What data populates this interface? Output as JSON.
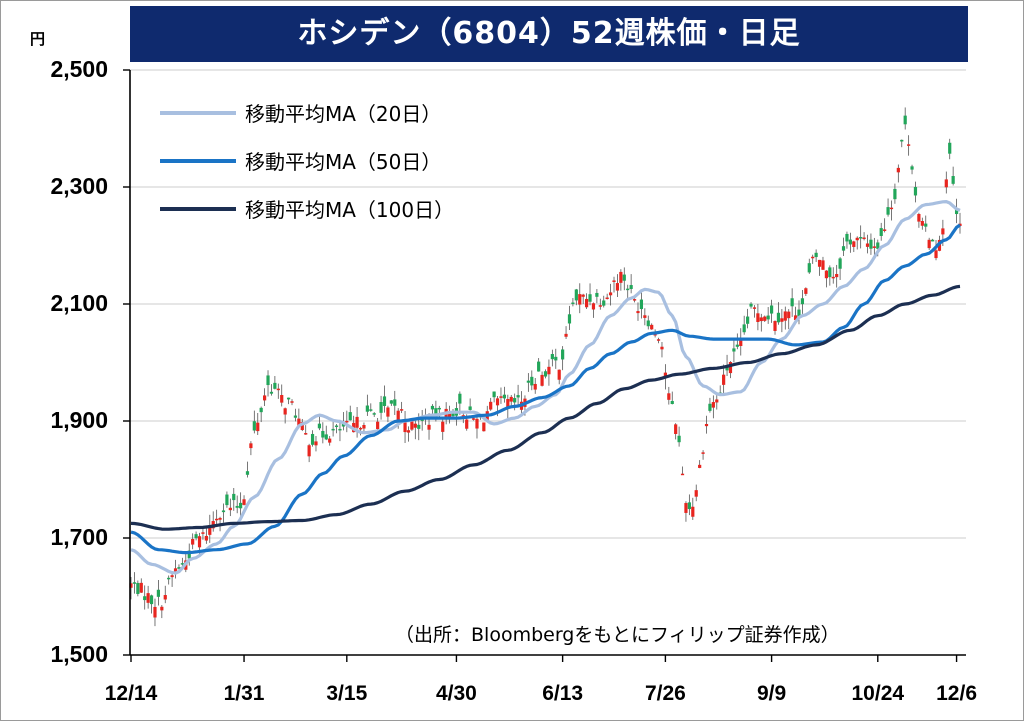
{
  "title": "ホシデン（6804）52週株価・日足",
  "unit": "円",
  "source": "（出所：Bloombergをもとにフィリップ証券作成）",
  "colors": {
    "title_bg": "#0f2a6e",
    "up": "#e8251f",
    "down": "#22a65a",
    "ma20": "#a8bfe0",
    "ma50": "#1a74c6",
    "ma100": "#1c2f52",
    "grid": "#d6d6d6"
  },
  "chart_data": {
    "type": "line",
    "ylim": [
      1500,
      2500
    ],
    "yticks": [
      "2,500",
      "2,300",
      "2,100",
      "1,900",
      "1,700",
      "1,500"
    ],
    "ytick_values": [
      2500,
      2300,
      2100,
      1900,
      1700,
      1500
    ],
    "xticks": [
      "12/14",
      "1/31",
      "3/15",
      "4/30",
      "6/13",
      "7/26",
      "9/9",
      "10/24",
      "12/6"
    ],
    "xtick_index": [
      0,
      33,
      63,
      95,
      126,
      156,
      187,
      218,
      241
    ],
    "n": 243,
    "grid": "horizontal",
    "legend_position": "top-left",
    "price_anchors": [
      [
        0,
        1620
      ],
      [
        8,
        1590
      ],
      [
        14,
        1650
      ],
      [
        20,
        1700
      ],
      [
        27,
        1750
      ],
      [
        32,
        1755
      ],
      [
        36,
        1880
      ],
      [
        40,
        1960
      ],
      [
        46,
        1930
      ],
      [
        52,
        1870
      ],
      [
        58,
        1880
      ],
      [
        64,
        1890
      ],
      [
        70,
        1910
      ],
      [
        78,
        1920
      ],
      [
        82,
        1890
      ],
      [
        90,
        1910
      ],
      [
        96,
        1920
      ],
      [
        101,
        1900
      ],
      [
        107,
        1930
      ],
      [
        113,
        1930
      ],
      [
        119,
        1980
      ],
      [
        125,
        2000
      ],
      [
        130,
        2110
      ],
      [
        138,
        2110
      ],
      [
        143,
        2150
      ],
      [
        148,
        2100
      ],
      [
        154,
        2050
      ],
      [
        158,
        1920
      ],
      [
        163,
        1750
      ],
      [
        170,
        1930
      ],
      [
        176,
        2010
      ],
      [
        182,
        2090
      ],
      [
        188,
        2080
      ],
      [
        195,
        2090
      ],
      [
        200,
        2180
      ],
      [
        205,
        2150
      ],
      [
        210,
        2210
      ],
      [
        218,
        2200
      ],
      [
        222,
        2270
      ],
      [
        226,
        2400
      ],
      [
        231,
        2230
      ],
      [
        236,
        2200
      ],
      [
        239,
        2350
      ],
      [
        241,
        2250
      ],
      [
        242,
        2230
      ]
    ],
    "series": [
      {
        "name": "移動平均MA（20日）",
        "anchors": [
          [
            0,
            1680
          ],
          [
            6,
            1655
          ],
          [
            13,
            1640
          ],
          [
            18,
            1665
          ],
          [
            25,
            1690
          ],
          [
            30,
            1720
          ],
          [
            36,
            1770
          ],
          [
            43,
            1835
          ],
          [
            50,
            1895
          ],
          [
            55,
            1910
          ],
          [
            60,
            1900
          ],
          [
            68,
            1880
          ],
          [
            75,
            1885
          ],
          [
            80,
            1900
          ],
          [
            88,
            1910
          ],
          [
            94,
            1915
          ],
          [
            100,
            1915
          ],
          [
            106,
            1895
          ],
          [
            112,
            1905
          ],
          [
            118,
            1925
          ],
          [
            124,
            1945
          ],
          [
            128,
            1980
          ],
          [
            134,
            2030
          ],
          [
            140,
            2080
          ],
          [
            146,
            2110
          ],
          [
            150,
            2125
          ],
          [
            154,
            2120
          ],
          [
            158,
            2080
          ],
          [
            162,
            2010
          ],
          [
            167,
            1960
          ],
          [
            172,
            1945
          ],
          [
            178,
            1950
          ],
          [
            184,
            2000
          ],
          [
            190,
            2040
          ],
          [
            196,
            2080
          ],
          [
            202,
            2100
          ],
          [
            208,
            2130
          ],
          [
            214,
            2160
          ],
          [
            220,
            2200
          ],
          [
            226,
            2245
          ],
          [
            232,
            2270
          ],
          [
            238,
            2275
          ],
          [
            242,
            2260
          ]
        ]
      },
      {
        "name": "移動平均MA（50日）",
        "anchors": [
          [
            0,
            1710
          ],
          [
            8,
            1680
          ],
          [
            16,
            1675
          ],
          [
            25,
            1680
          ],
          [
            34,
            1690
          ],
          [
            42,
            1720
          ],
          [
            50,
            1775
          ],
          [
            56,
            1810
          ],
          [
            62,
            1840
          ],
          [
            70,
            1875
          ],
          [
            78,
            1900
          ],
          [
            86,
            1905
          ],
          [
            95,
            1905
          ],
          [
            104,
            1910
          ],
          [
            112,
            1925
          ],
          [
            120,
            1940
          ],
          [
            128,
            1960
          ],
          [
            134,
            1990
          ],
          [
            140,
            2015
          ],
          [
            146,
            2035
          ],
          [
            152,
            2050
          ],
          [
            158,
            2055
          ],
          [
            163,
            2045
          ],
          [
            170,
            2040
          ],
          [
            178,
            2040
          ],
          [
            186,
            2040
          ],
          [
            194,
            2030
          ],
          [
            202,
            2035
          ],
          [
            208,
            2060
          ],
          [
            214,
            2100
          ],
          [
            220,
            2140
          ],
          [
            226,
            2165
          ],
          [
            232,
            2185
          ],
          [
            238,
            2210
          ],
          [
            242,
            2235
          ]
        ]
      },
      {
        "name": "移動平均MA（100日）",
        "anchors": [
          [
            0,
            1725
          ],
          [
            10,
            1715
          ],
          [
            20,
            1718
          ],
          [
            30,
            1725
          ],
          [
            40,
            1728
          ],
          [
            50,
            1730
          ],
          [
            60,
            1740
          ],
          [
            70,
            1758
          ],
          [
            80,
            1780
          ],
          [
            90,
            1800
          ],
          [
            100,
            1825
          ],
          [
            110,
            1850
          ],
          [
            120,
            1880
          ],
          [
            128,
            1905
          ],
          [
            136,
            1930
          ],
          [
            144,
            1955
          ],
          [
            152,
            1970
          ],
          [
            160,
            1980
          ],
          [
            170,
            1990
          ],
          [
            180,
            2000
          ],
          [
            190,
            2015
          ],
          [
            200,
            2030
          ],
          [
            210,
            2055
          ],
          [
            218,
            2080
          ],
          [
            226,
            2100
          ],
          [
            234,
            2115
          ],
          [
            242,
            2130
          ]
        ]
      }
    ]
  }
}
